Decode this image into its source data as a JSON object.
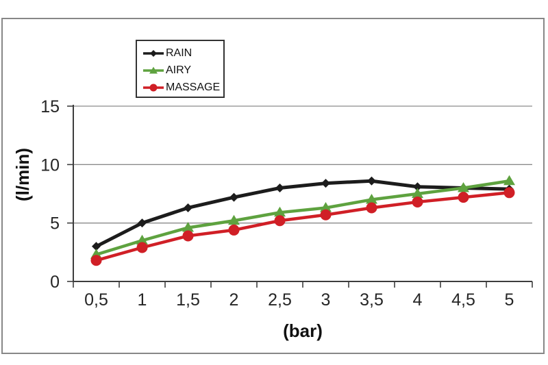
{
  "colors": {
    "background": "#ffffff",
    "frame_border": "#878787",
    "gridline": "#8a8a8a",
    "axis": "#3d3d3d",
    "tick_label": "#262626",
    "legend_border": "#333333",
    "rain": "#1c1c1c",
    "airy": "#5ea23f",
    "massage": "#d01f26"
  },
  "chart_data": {
    "type": "line",
    "title": "",
    "xlabel": "(bar)",
    "ylabel": "(l/min)",
    "categories": [
      "0,5",
      "1",
      "1,5",
      "2",
      "2,5",
      "3",
      "3,5",
      "4",
      "4,5",
      "5"
    ],
    "x_values": [
      0.5,
      1,
      1.5,
      2,
      2.5,
      3,
      3.5,
      4,
      4.5,
      5
    ],
    "series": [
      {
        "name": "RAIN",
        "color": "#1c1c1c",
        "marker": "diamond",
        "values": [
          3.0,
          5.0,
          6.3,
          7.2,
          8.0,
          8.4,
          8.6,
          8.1,
          8.0,
          7.9
        ]
      },
      {
        "name": "AIRY",
        "color": "#5ea23f",
        "marker": "triangle",
        "values": [
          2.3,
          3.5,
          4.6,
          5.2,
          5.9,
          6.3,
          7.0,
          7.5,
          8.0,
          8.6
        ]
      },
      {
        "name": "MASSAGE",
        "color": "#d01f26",
        "marker": "circle",
        "values": [
          1.8,
          2.9,
          3.9,
          4.4,
          5.2,
          5.7,
          6.3,
          6.8,
          7.2,
          7.6
        ]
      }
    ],
    "ylim": [
      0,
      15
    ],
    "yticks": [
      0,
      5,
      10,
      15
    ],
    "grid": true,
    "legend_position": "top-left-inside"
  }
}
